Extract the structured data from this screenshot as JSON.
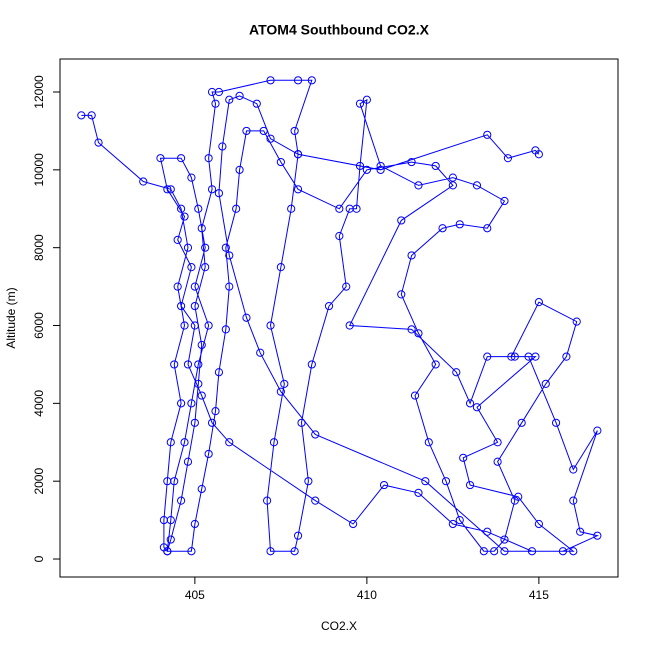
{
  "chart_data": {
    "type": "line",
    "title": "ATOM4 Southbound CO2.X",
    "x_label": "CO2.X",
    "y_label": "Altitude (m)",
    "x": [
      401.7,
      402.0,
      402.2,
      403.5,
      404.3,
      404.6,
      404.8,
      404.5,
      404.7,
      404.4,
      404.6,
      404.3,
      404.2,
      404.1,
      404.1,
      404.2,
      404.3,
      404.6,
      404.8,
      405.0,
      405.1,
      405.2,
      405.0,
      405.3,
      405.2,
      405.5,
      405.4,
      405.6,
      405.5,
      405.7,
      407.2,
      408.0,
      408.4,
      407.9,
      408.0,
      407.8,
      407.5,
      407.2,
      407.6,
      407.3,
      407.1,
      407.2,
      407.9,
      408.0,
      408.3,
      408.1,
      408.4,
      408.9,
      409.4,
      409.2,
      409.5,
      409.7,
      409.8,
      410.0,
      409.8,
      410.4,
      411.5,
      412.5,
      413.2,
      414.0,
      413.5,
      412.7,
      412.2,
      411.3,
      411.0,
      411.5,
      412.0,
      411.4,
      411.8,
      412.3,
      412.7,
      413.4,
      413.7,
      414.0,
      414.3,
      413.8,
      414.5,
      415.2,
      415.8,
      416.1,
      415.0,
      414.2,
      414.7,
      415.5,
      416.0,
      416.7,
      416.0,
      416.2,
      416.7,
      415.7,
      414.8,
      413.5,
      412.5,
      411.5,
      410.5,
      409.6,
      408.5,
      406.0,
      405.5,
      405.2,
      404.8,
      405.0,
      404.6,
      404.9,
      404.5,
      404.7,
      404.2,
      404.0,
      404.6,
      404.9,
      405.1,
      405.3,
      405.0,
      405.4,
      405.1,
      404.9,
      404.7,
      404.4,
      404.3,
      404.2,
      404.9,
      405.0,
      405.2,
      405.4,
      405.6,
      405.7,
      405.9,
      406.0,
      405.9,
      406.2,
      406.3,
      406.5,
      407.0,
      407.5,
      408.0,
      409.2,
      410.0,
      411.3,
      412.0,
      412.5,
      411.0,
      409.5,
      411.3,
      412.6,
      413.0,
      413.5,
      414.3,
      414.9,
      413.2,
      413.8,
      412.8,
      413.0,
      414.4,
      415.0,
      416.0,
      414.0,
      411.7,
      408.5,
      407.5,
      406.9,
      406.5,
      406.0,
      405.7,
      405.8,
      406.0,
      406.3,
      406.8,
      407.2,
      408.0,
      410.4,
      413.5,
      414.1,
      414.9,
      415.0
    ],
    "values": [
      11400,
      11400,
      10700,
      9700,
      9500,
      9000,
      8000,
      7000,
      6000,
      5000,
      4000,
      3000,
      2000,
      1000,
      300,
      200,
      500,
      1500,
      2500,
      3500,
      4500,
      5500,
      6500,
      7500,
      8500,
      9500,
      10300,
      11700,
      12000,
      12000,
      12300,
      12300,
      12300,
      11000,
      10400,
      9000,
      7500,
      6000,
      4500,
      3000,
      1500,
      200,
      200,
      600,
      2000,
      3500,
      5000,
      6500,
      7000,
      8300,
      9000,
      9000,
      10100,
      11800,
      11700,
      10100,
      9600,
      9800,
      9600,
      9200,
      8500,
      8600,
      8500,
      7800,
      6800,
      5800,
      5000,
      4200,
      3000,
      2000,
      1000,
      200,
      200,
      500,
      1500,
      2500,
      3500,
      4500,
      5200,
      6100,
      6600,
      5200,
      5200,
      3500,
      2300,
      3300,
      1500,
      700,
      600,
      200,
      200,
      700,
      900,
      1700,
      1900,
      900,
      1500,
      3000,
      3500,
      4200,
      5000,
      6000,
      6500,
      7500,
      8200,
      8800,
      9500,
      10300,
      10300,
      9800,
      9000,
      8000,
      7000,
      6000,
      5000,
      4000,
      3000,
      2000,
      1000,
      200,
      200,
      900,
      1800,
      2700,
      3800,
      4800,
      5900,
      7000,
      8000,
      9000,
      10000,
      11000,
      11000,
      10200,
      9500,
      9000,
      10000,
      10200,
      10100,
      9600,
      8700,
      6000,
      5900,
      4800,
      4000,
      5200,
      5200,
      5200,
      3900,
      3000,
      2600,
      1900,
      1600,
      900,
      200,
      200,
      2000,
      3200,
      4300,
      5300,
      6200,
      7800,
      9400,
      10600,
      11800,
      11900,
      11700,
      10800,
      10400,
      10000,
      10900,
      10300,
      10500,
      10400
    ],
    "color": "#0000ff",
    "xlim": [
      401.08,
      417.3
    ],
    "ylim": [
      -462,
      12848
    ],
    "xticks": [
      405,
      410,
      415
    ],
    "yticks": [
      0,
      2000,
      4000,
      6000,
      8000,
      10000,
      12000
    ]
  }
}
